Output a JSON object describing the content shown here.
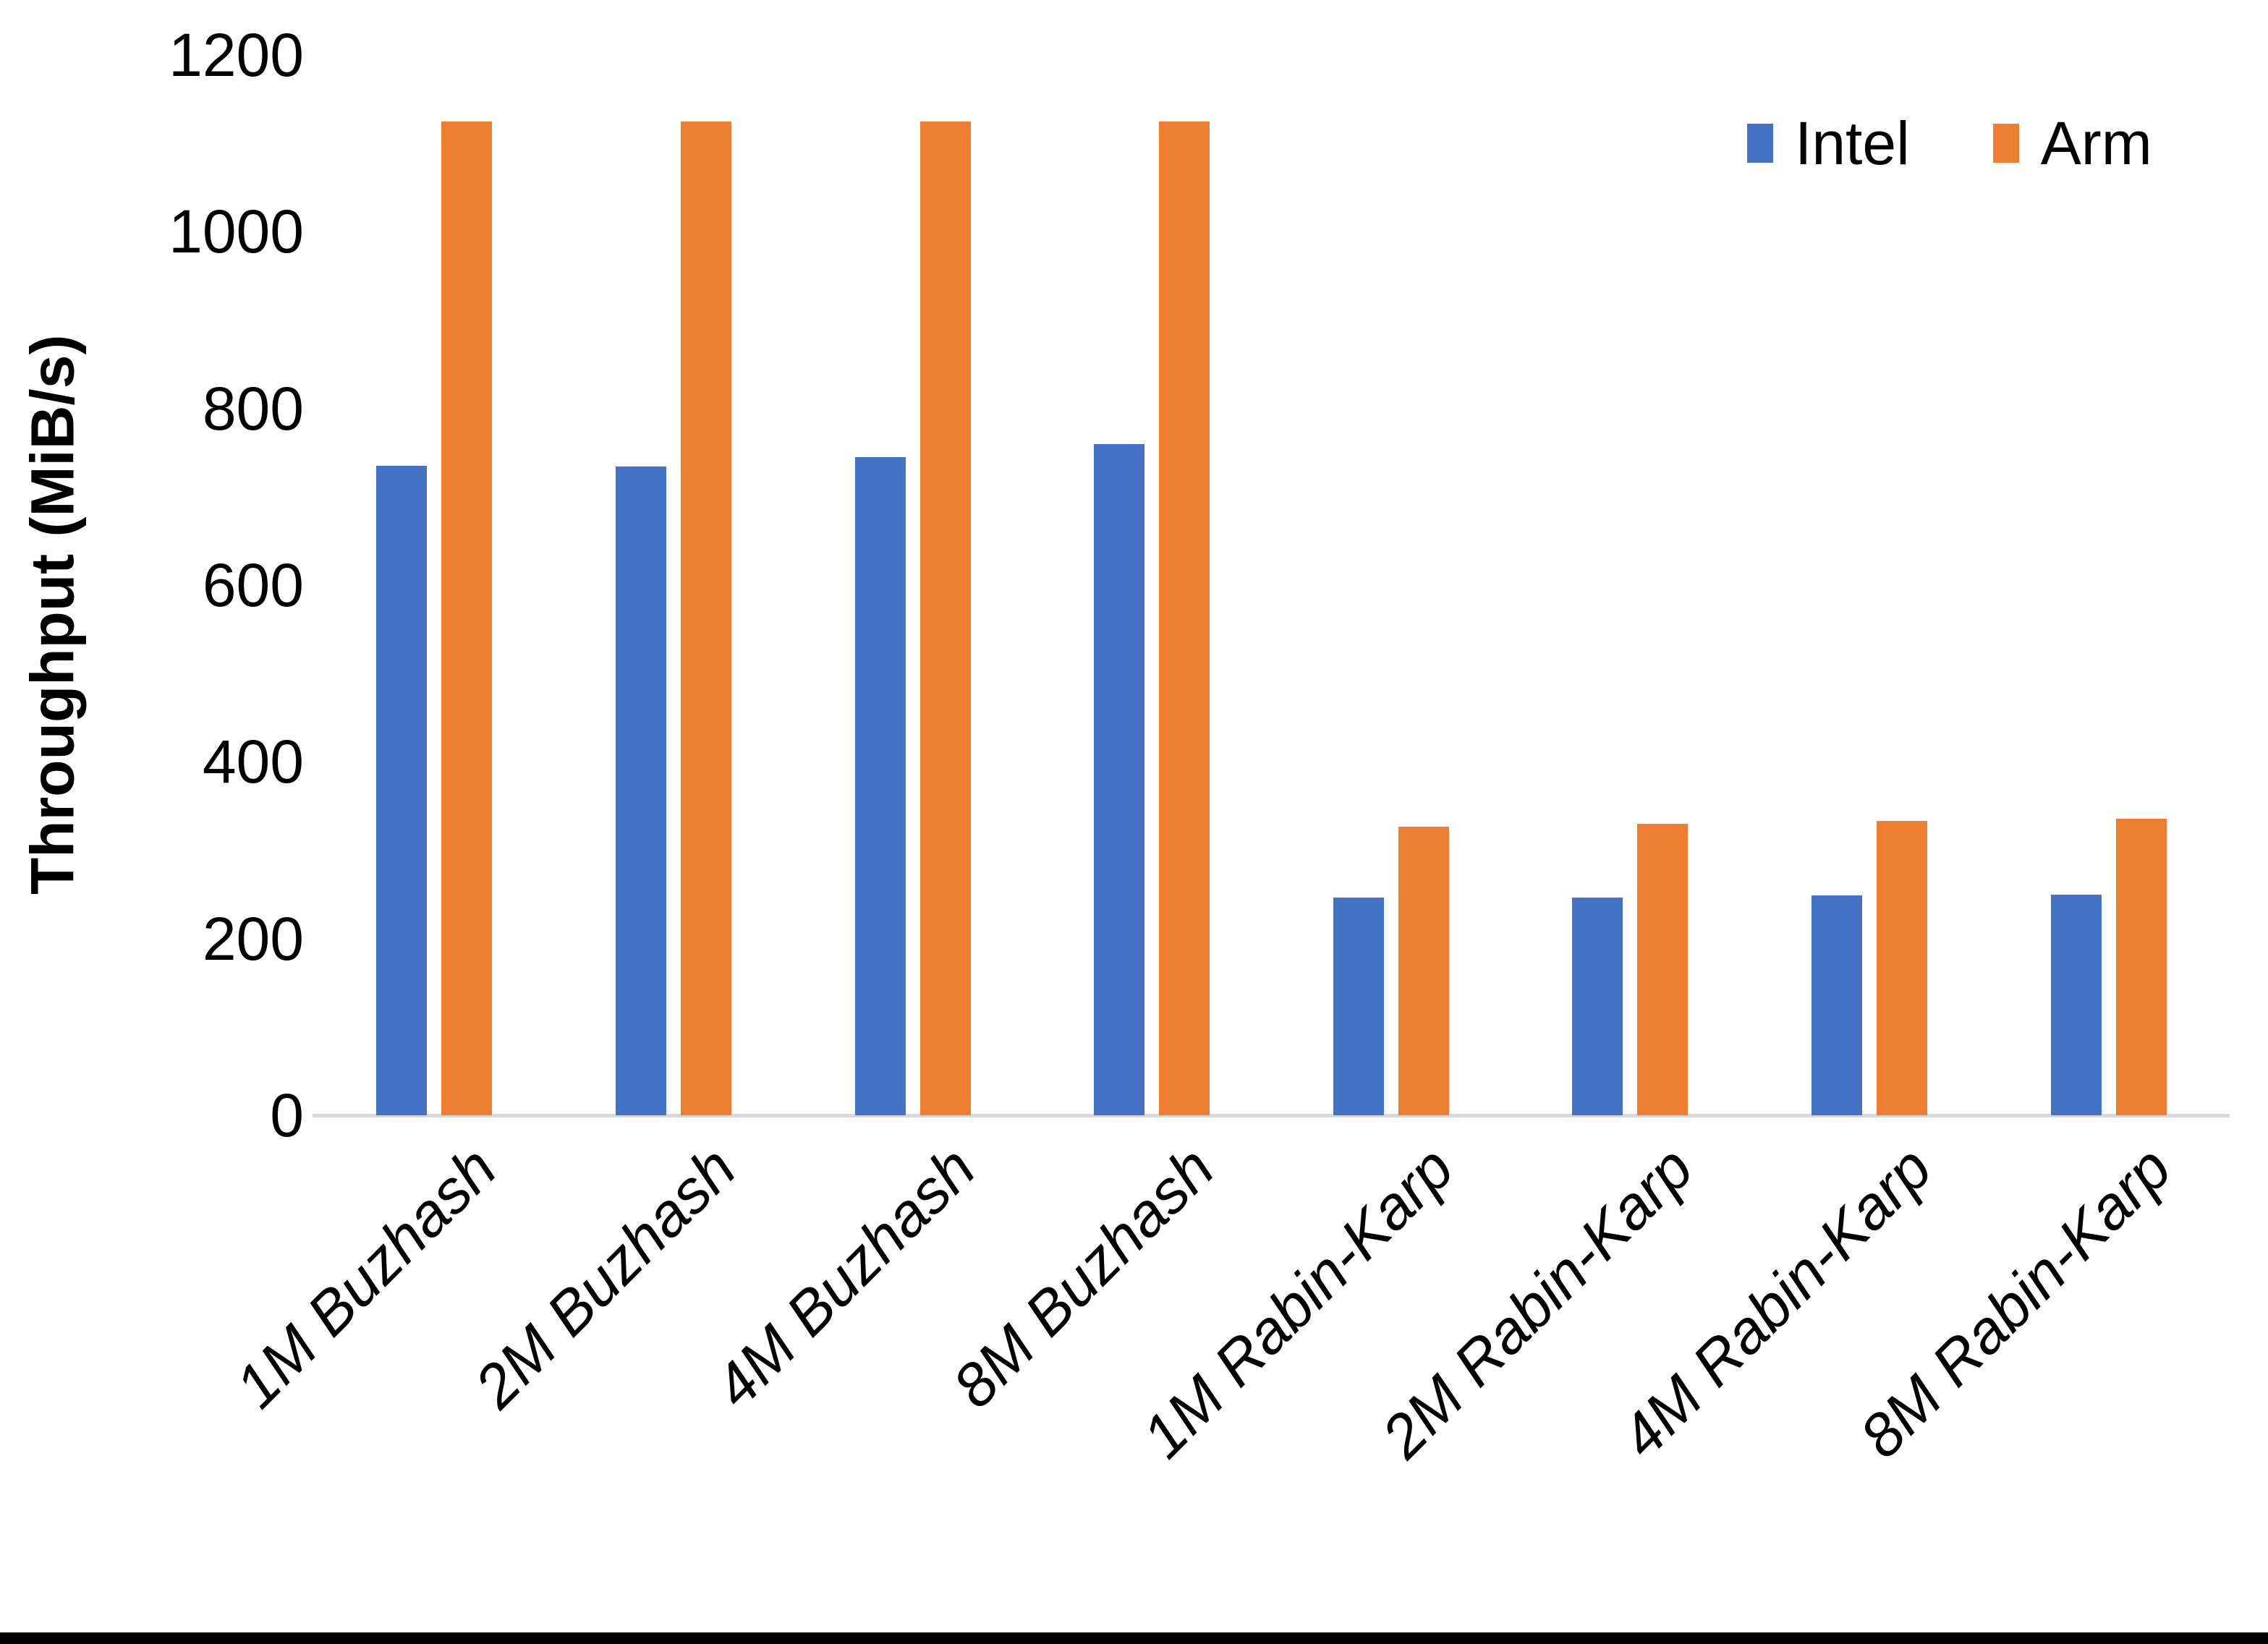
{
  "chart_data": {
    "type": "bar",
    "title": "",
    "categories": [
      "1M Buzhash",
      "2M Buzhash",
      "4M Buzhash",
      "8M Buzhash",
      "1M Rabin-Karp",
      "2M Rabin-Karp",
      "4M Rabin-Karp",
      "8M Rabin-Karp"
    ],
    "series": [
      {
        "name": "Intel",
        "color": "#4472C4",
        "values": [
          735,
          734,
          745,
          760,
          246,
          246,
          249,
          250
        ]
      },
      {
        "name": "Arm",
        "color": "#ED7D31",
        "values": [
          1125,
          1125,
          1125,
          1125,
          327,
          330,
          333,
          336
        ]
      }
    ],
    "xlabel": "",
    "ylabel": "Throughput (MiB/s)",
    "ylim": [
      0,
      1200
    ],
    "ytick_step": 200,
    "yticks": [
      0,
      200,
      400,
      600,
      800,
      1000,
      1200
    ],
    "grid": false,
    "legend_position": "top-right",
    "axis_line_color": "#D9D9D9",
    "background_color": "#FFFFFF",
    "bottom_border_color": "#000000"
  }
}
